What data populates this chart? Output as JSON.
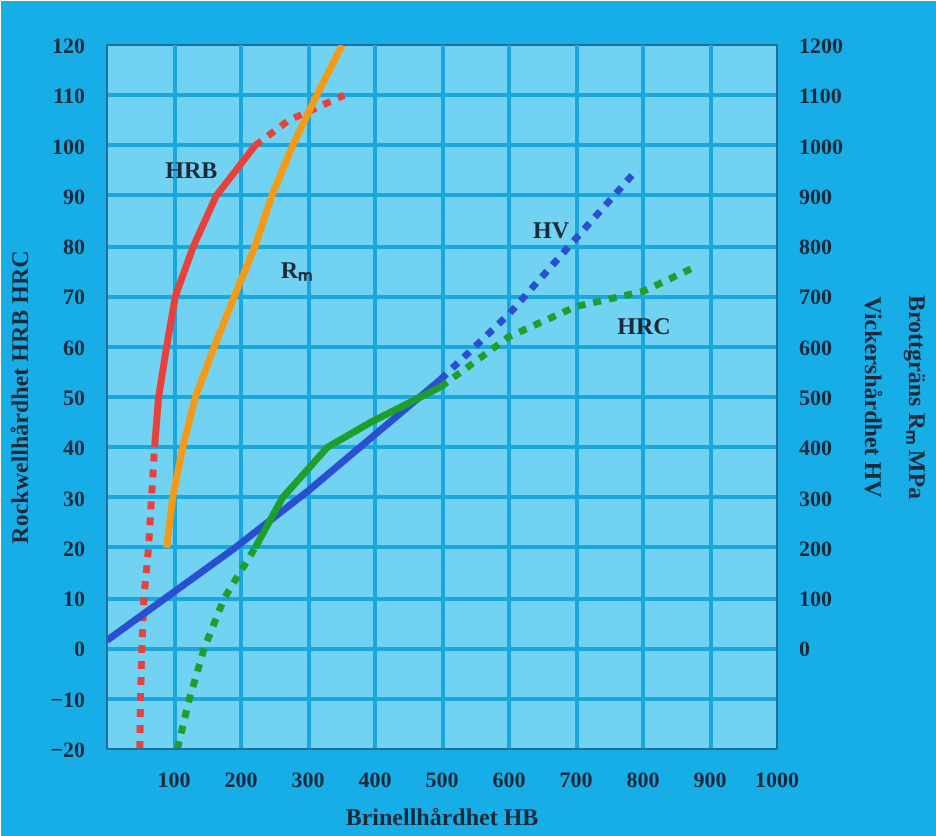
{
  "chart_data": {
    "type": "line",
    "xlabel": "Brinellhårdhet HB",
    "ylabel": "Rockwellhårdhet HRB HRC",
    "y2label": "Vickershårdhet HV\nBrottgräns Rₘ MPa",
    "xlim": [
      0,
      1000
    ],
    "xticks": [
      100,
      200,
      300,
      400,
      500,
      600,
      700,
      800,
      900,
      1000
    ],
    "ylim": [
      -20,
      120
    ],
    "yticks": [
      -20,
      -10,
      0,
      10,
      20,
      30,
      40,
      50,
      60,
      70,
      80,
      90,
      100,
      110,
      120
    ],
    "y2lim": [
      -200,
      1200
    ],
    "y2ticks": [
      0,
      100,
      200,
      300,
      400,
      500,
      600,
      700,
      800,
      900,
      1000,
      1100,
      1200
    ],
    "grid": true,
    "marker": "none",
    "series": [
      {
        "color": "#e8413c",
        "line_style": "dotted",
        "x": [
          49,
          50,
          52,
          55,
          62,
          71
        ],
        "values": [
          -20,
          -10,
          0,
          10,
          20,
          40
        ]
      },
      {
        "name": "HRB",
        "color": "#e8413c",
        "line_style": "solid",
        "x": [
          71,
          77,
          89,
          102,
          129,
          163,
          221
        ],
        "values": [
          40,
          50,
          60,
          70,
          80,
          90,
          100
        ]
      },
      {
        "color": "#e8413c",
        "line_style": "dotted",
        "x": [
          221,
          271,
          354
        ],
        "values": [
          100,
          105,
          110
        ]
      },
      {
        "name": "Rₘ",
        "color": "#f59a16",
        "line_style": "solid",
        "axis": "y2",
        "x": [
          89,
          98,
          113,
          132,
          160,
          190,
          221,
          246,
          277,
          313,
          351
        ],
        "values": [
          200,
          300,
          400,
          500,
          600,
          700,
          800,
          900,
          1000,
          1100,
          1200
        ]
      },
      {
        "color": "#2a4fd0",
        "line_style": "solid",
        "axis": "y2",
        "x": [
          0,
          191,
          300,
          498
        ],
        "values": [
          16,
          200,
          313,
          535
        ]
      },
      {
        "name": "HV",
        "color": "#2a4fd0",
        "line_style": "dotted",
        "axis": "y2",
        "x": [
          498,
          600,
          787
        ],
        "values": [
          535,
          665,
          946
        ]
      },
      {
        "color": "#1e9e2a",
        "line_style": "dotted",
        "x": [
          105,
          123,
          145,
          175,
          221
        ],
        "values": [
          -20,
          -10,
          0,
          10,
          20
        ]
      },
      {
        "color": "#1e9e2a",
        "line_style": "solid",
        "x": [
          221,
          262,
          329,
          394,
          498
        ],
        "values": [
          20,
          30,
          40,
          45,
          52
        ]
      },
      {
        "name": "HRC",
        "color": "#1e9e2a",
        "line_style": "dotted",
        "x": [
          498,
          600,
          700,
          800,
          880
        ],
        "values": [
          52,
          62,
          68,
          71,
          76
        ]
      }
    ]
  }
}
